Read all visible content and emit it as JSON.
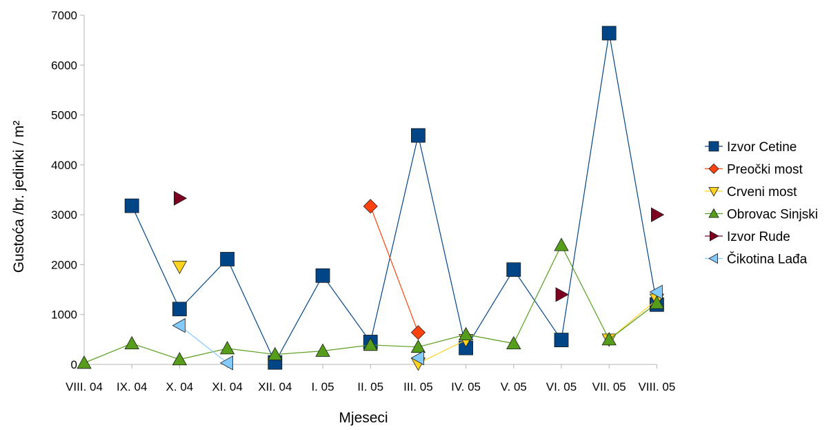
{
  "chart_data": {
    "type": "line",
    "title": "",
    "xlabel": "Mjeseci",
    "ylabel": "Gustoća /br. jedinki / m²",
    "ylim": [
      0,
      7000
    ],
    "yticks": [
      0,
      1000,
      2000,
      3000,
      4000,
      5000,
      6000,
      7000
    ],
    "categories": [
      "VIII. 04",
      "IX. 04",
      "X. 04",
      "XI. 04",
      "XII. 04",
      "I. 05",
      "II. 05",
      "III. 05",
      "IV. 05",
      "V. 05",
      "VI. 05",
      "VII. 05",
      "VIII. 05"
    ],
    "grid": false,
    "legend_position": "right",
    "series": [
      {
        "name": "Izvor Cetine",
        "color": "#004586",
        "marker": "square",
        "values": [
          null,
          3180,
          1110,
          2110,
          40,
          1780,
          450,
          4590,
          330,
          1900,
          490,
          6640,
          1200
        ]
      },
      {
        "name": "Preočki most",
        "color": "#ff420e",
        "marker": "diamond",
        "values": [
          null,
          null,
          null,
          null,
          null,
          null,
          3170,
          640,
          null,
          null,
          null,
          null,
          null
        ]
      },
      {
        "name": "Crveni most",
        "color": "#ffd320",
        "marker": "triangle-down",
        "values": [
          null,
          null,
          1960,
          null,
          null,
          null,
          null,
          20,
          490,
          null,
          null,
          500,
          1300
        ]
      },
      {
        "name": "Obrovac Sinjski",
        "color": "#579d1c",
        "marker": "triangle-up",
        "values": [
          30,
          420,
          100,
          320,
          200,
          270,
          390,
          350,
          600,
          420,
          2390,
          500,
          1230
        ]
      },
      {
        "name": "Izvor Rude",
        "color": "#7e0021",
        "marker": "triangle-right",
        "values": [
          null,
          null,
          3330,
          null,
          null,
          null,
          null,
          null,
          null,
          null,
          1400,
          null,
          3000
        ]
      },
      {
        "name": "Čikotina Lađa",
        "color": "#83caff",
        "marker": "triangle-left",
        "values": [
          null,
          null,
          780,
          30,
          null,
          null,
          null,
          130,
          null,
          null,
          null,
          null,
          1450
        ]
      }
    ]
  }
}
